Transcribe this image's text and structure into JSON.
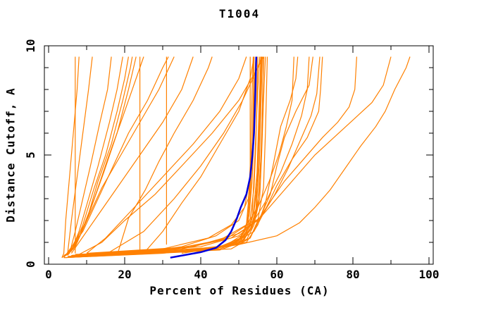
{
  "title": "T1004",
  "axes": {
    "x": {
      "label": "Percent of Residues (CA)",
      "min": 0,
      "max": 100,
      "major_ticks": [
        0,
        20,
        40,
        60,
        80,
        100
      ],
      "major_labels": [
        "0",
        "20",
        "40",
        "60",
        "80",
        "100"
      ],
      "minor_step": 10
    },
    "y": {
      "label": "Distance Cutoff, A",
      "min": 0,
      "max": 10,
      "major_ticks": [
        0,
        5,
        10
      ],
      "major_labels": [
        "0",
        "5",
        "10"
      ],
      "minor_step": 1
    }
  },
  "colors": {
    "model": "#FF8000",
    "highlight": "#0000DD",
    "frame": "#000000",
    "background": "#FFFFFF"
  },
  "chart_data": {
    "type": "line",
    "title": "T1004",
    "xlabel": "Percent of Residues (CA)",
    "ylabel": "Distance Cutoff, A",
    "xlim": [
      0,
      100
    ],
    "ylim": [
      0,
      10
    ],
    "grid": false,
    "legend": "none",
    "x_units": "percent of CA residues",
    "y_units": "angstrom distance cutoff",
    "orange_series": [
      [
        [
          3.5,
          0.3
        ],
        [
          4,
          0.5
        ],
        [
          4.5,
          2
        ],
        [
          5.5,
          4
        ],
        [
          6.5,
          6
        ],
        [
          7.5,
          8
        ],
        [
          8,
          9.5
        ]
      ],
      [
        [
          3.5,
          0.3
        ],
        [
          5,
          0.5
        ],
        [
          6,
          2
        ],
        [
          7.5,
          4
        ],
        [
          9,
          6
        ],
        [
          10.5,
          8
        ],
        [
          11.5,
          9.5
        ]
      ],
      [
        [
          4,
          0.35
        ],
        [
          5.5,
          0.5
        ],
        [
          7,
          1.5
        ],
        [
          9,
          3
        ],
        [
          11,
          4.5
        ],
        [
          13.5,
          6.5
        ],
        [
          15.5,
          8
        ],
        [
          16.5,
          9.5
        ]
      ],
      [
        [
          4,
          0.4
        ],
        [
          6,
          0.6
        ],
        [
          8,
          1.5
        ],
        [
          10.5,
          3
        ],
        [
          13,
          4.5
        ],
        [
          16,
          6.5
        ],
        [
          18,
          8
        ],
        [
          19.5,
          9.5
        ]
      ],
      [
        [
          4.5,
          0.4
        ],
        [
          6.5,
          0.7
        ],
        [
          9,
          1.8
        ],
        [
          12,
          3.5
        ],
        [
          15,
          5
        ],
        [
          18,
          7
        ],
        [
          20,
          8.5
        ],
        [
          21,
          9.5
        ]
      ],
      [
        [
          4,
          0.35
        ],
        [
          7,
          0.8
        ],
        [
          10,
          2
        ],
        [
          13,
          3.8
        ],
        [
          16.5,
          5.5
        ],
        [
          19.5,
          7.5
        ],
        [
          21.5,
          9
        ],
        [
          22,
          9.5
        ]
      ],
      [
        [
          4.5,
          0.4
        ],
        [
          7.5,
          1
        ],
        [
          11,
          2.5
        ],
        [
          14.5,
          4.2
        ],
        [
          18,
          6
        ],
        [
          21,
          8
        ],
        [
          23,
          9.5
        ]
      ],
      [
        [
          5,
          0.4
        ],
        [
          8,
          1.2
        ],
        [
          12,
          3
        ],
        [
          15.5,
          4.8
        ],
        [
          19,
          6.5
        ],
        [
          23,
          8.5
        ],
        [
          25,
          9.5
        ]
      ],
      [
        [
          7,
          0.5
        ],
        [
          7,
          9.5
        ]
      ],
      [
        [
          24,
          0.6
        ],
        [
          24,
          9.5
        ]
      ],
      [
        [
          31,
          0.9
        ],
        [
          31,
          9.5
        ]
      ],
      [
        [
          4,
          0.3
        ],
        [
          9,
          1.5
        ],
        [
          13,
          3
        ],
        [
          17,
          4.5
        ],
        [
          21,
          6
        ],
        [
          26,
          7.5
        ],
        [
          30,
          9
        ],
        [
          31.5,
          9.5
        ]
      ],
      [
        [
          5,
          0.45
        ],
        [
          10,
          2
        ],
        [
          14,
          3.5
        ],
        [
          19,
          5
        ],
        [
          24,
          6.5
        ],
        [
          29,
          8
        ],
        [
          33,
          9.5
        ]
      ],
      [
        [
          6,
          0.5
        ],
        [
          12,
          2
        ],
        [
          18,
          3.5
        ],
        [
          24,
          5
        ],
        [
          30,
          6.5
        ],
        [
          35,
          8
        ],
        [
          38,
          9.5
        ]
      ],
      [
        [
          18,
          0.4
        ],
        [
          21,
          2.1
        ],
        [
          25.4,
          3.4
        ],
        [
          29,
          4.7
        ],
        [
          33,
          6
        ],
        [
          38,
          7.5
        ],
        [
          42,
          9
        ],
        [
          43,
          9.5
        ]
      ],
      [
        [
          10,
          0.5
        ],
        [
          15,
          1.2
        ],
        [
          22,
          2.5
        ],
        [
          30,
          4
        ],
        [
          38,
          5.5
        ],
        [
          45,
          7
        ],
        [
          50,
          8.5
        ],
        [
          52,
          9.5
        ]
      ],
      [
        [
          8,
          0.45
        ],
        [
          14,
          1
        ],
        [
          20,
          2
        ],
        [
          28,
          3.2
        ],
        [
          35,
          4.5
        ],
        [
          43,
          6
        ],
        [
          50,
          7.5
        ],
        [
          55,
          9
        ],
        [
          56,
          9.5
        ]
      ],
      [
        [
          25,
          0.5
        ],
        [
          30,
          1.5
        ],
        [
          35,
          2.8
        ],
        [
          40,
          4
        ],
        [
          45,
          5.5
        ],
        [
          50,
          7
        ],
        [
          53,
          8.5
        ],
        [
          54,
          9.5
        ]
      ],
      [
        [
          15,
          0.45
        ],
        [
          25,
          1.5
        ],
        [
          33,
          3
        ],
        [
          40,
          4.5
        ],
        [
          46,
          6
        ],
        [
          51,
          7.5
        ],
        [
          55,
          9
        ],
        [
          56.5,
          9.5
        ]
      ],
      [
        [
          4,
          0.3
        ],
        [
          30,
          0.5
        ],
        [
          46,
          0.8
        ],
        [
          51,
          1.2
        ],
        [
          52.5,
          2
        ],
        [
          53,
          3
        ],
        [
          53.5,
          5
        ],
        [
          54,
          7
        ],
        [
          54.5,
          9.5
        ]
      ],
      [
        [
          4,
          0.3
        ],
        [
          35,
          0.55
        ],
        [
          48,
          0.9
        ],
        [
          52,
          1.4
        ],
        [
          53.5,
          2.2
        ],
        [
          54,
          4
        ],
        [
          54.5,
          6
        ],
        [
          55,
          8
        ],
        [
          55.5,
          9.5
        ]
      ],
      [
        [
          5,
          0.35
        ],
        [
          40,
          0.6
        ],
        [
          50,
          1
        ],
        [
          53,
          1.6
        ],
        [
          54.5,
          2.5
        ],
        [
          55,
          4.5
        ],
        [
          55.5,
          7
        ],
        [
          56,
          9.5
        ]
      ],
      [
        [
          5,
          0.35
        ],
        [
          45,
          0.65
        ],
        [
          52,
          1.1
        ],
        [
          54,
          1.8
        ],
        [
          55.5,
          3
        ],
        [
          56,
          5
        ],
        [
          56.5,
          7.5
        ],
        [
          57,
          9.5
        ]
      ],
      [
        [
          6,
          0.4
        ],
        [
          48,
          0.7
        ],
        [
          53,
          1.2
        ],
        [
          55,
          2
        ],
        [
          56.5,
          3.5
        ],
        [
          57,
          6
        ],
        [
          57.5,
          9.5
        ]
      ],
      [
        [
          4.5,
          0.3
        ],
        [
          25,
          0.5
        ],
        [
          44,
          0.75
        ],
        [
          50,
          1.1
        ],
        [
          52,
          1.8
        ],
        [
          52.5,
          2.8
        ],
        [
          53,
          4.5
        ],
        [
          53,
          9.5
        ]
      ],
      [
        [
          5,
          0.35
        ],
        [
          33,
          0.55
        ],
        [
          47,
          0.85
        ],
        [
          51.5,
          1.3
        ],
        [
          53,
          2.1
        ],
        [
          54,
          3.5
        ],
        [
          54.5,
          5.5
        ],
        [
          55,
          9.5
        ]
      ],
      [
        [
          6,
          0.4
        ],
        [
          38,
          0.6
        ],
        [
          49,
          0.95
        ],
        [
          52.5,
          1.5
        ],
        [
          54,
          2.4
        ],
        [
          55,
          4
        ],
        [
          55.5,
          6.5
        ],
        [
          56,
          9.5
        ]
      ],
      [
        [
          7,
          0.4
        ],
        [
          42,
          0.65
        ],
        [
          51,
          1.05
        ],
        [
          53.5,
          1.7
        ],
        [
          55,
          2.7
        ],
        [
          55.8,
          4.8
        ],
        [
          56.2,
          7
        ],
        [
          56.5,
          9.5
        ]
      ],
      [
        [
          5.5,
          0.35
        ],
        [
          28,
          0.5
        ],
        [
          45,
          0.8
        ],
        [
          50.5,
          1.2
        ],
        [
          52.2,
          1.9
        ],
        [
          52.8,
          3
        ],
        [
          53.2,
          5
        ],
        [
          53.5,
          8
        ],
        [
          53.8,
          9.5
        ]
      ],
      [
        [
          6,
          0.4
        ],
        [
          36,
          0.6
        ],
        [
          48.5,
          0.9
        ],
        [
          52,
          1.45
        ],
        [
          53.8,
          2.3
        ],
        [
          54.8,
          4.2
        ],
        [
          55.2,
          6.5
        ],
        [
          55.8,
          9.5
        ]
      ],
      [
        [
          7,
          0.45
        ],
        [
          44,
          0.7
        ],
        [
          51.5,
          1.15
        ],
        [
          54,
          1.9
        ],
        [
          55.3,
          3.2
        ],
        [
          56,
          5.5
        ],
        [
          56.3,
          8
        ],
        [
          56.6,
          9.5
        ]
      ],
      [
        [
          5,
          0.35
        ],
        [
          31,
          0.55
        ],
        [
          46.5,
          0.85
        ],
        [
          51,
          1.35
        ],
        [
          52.7,
          2.2
        ],
        [
          53.5,
          3.8
        ],
        [
          54,
          6
        ],
        [
          54.2,
          8.5
        ],
        [
          54.5,
          9.5
        ]
      ],
      [
        [
          6.5,
          0.4
        ],
        [
          41,
          0.65
        ],
        [
          50.5,
          1
        ],
        [
          53.2,
          1.6
        ],
        [
          54.6,
          2.6
        ],
        [
          55.4,
          4.6
        ],
        [
          55.8,
          7.2
        ],
        [
          56.2,
          9.5
        ]
      ],
      [
        [
          20,
          0.45
        ],
        [
          35,
          0.8
        ],
        [
          44,
          1.3
        ],
        [
          50,
          2
        ],
        [
          52.5,
          3
        ],
        [
          53.5,
          4.5
        ],
        [
          54,
          9.5
        ]
      ],
      [
        [
          12,
          0.45
        ],
        [
          30,
          0.7
        ],
        [
          42,
          1.2
        ],
        [
          48,
          1.8
        ],
        [
          51.5,
          2.6
        ],
        [
          53,
          4
        ],
        [
          53.8,
          6
        ],
        [
          54,
          9.5
        ]
      ],
      [
        [
          5,
          0.35
        ],
        [
          40,
          0.6
        ],
        [
          52,
          1
        ],
        [
          55,
          1.8
        ],
        [
          57,
          2.8
        ],
        [
          59,
          4.5
        ],
        [
          61,
          6.3
        ],
        [
          63.5,
          7.5
        ],
        [
          65,
          8.5
        ],
        [
          65.5,
          9.5
        ]
      ],
      [
        [
          6,
          0.4
        ],
        [
          45,
          0.7
        ],
        [
          53,
          1.2
        ],
        [
          56,
          2.3
        ],
        [
          58.3,
          3.2
        ],
        [
          60,
          4.5
        ],
        [
          62,
          5.8
        ],
        [
          65,
          7
        ],
        [
          68.5,
          8.2
        ],
        [
          69.5,
          9.5
        ]
      ],
      [
        [
          7,
          0.4
        ],
        [
          47,
          0.8
        ],
        [
          54,
          1.5
        ],
        [
          57,
          2.5
        ],
        [
          60,
          3.6
        ],
        [
          64,
          4.8
        ],
        [
          68,
          5.8
        ],
        [
          71,
          7
        ],
        [
          71.5,
          8
        ],
        [
          72,
          9.5
        ]
      ],
      [
        [
          8,
          0.45
        ],
        [
          35,
          0.7
        ],
        [
          48,
          1.2
        ],
        [
          55,
          2
        ],
        [
          58,
          2.8
        ],
        [
          62,
          3.8
        ],
        [
          67,
          4.8
        ],
        [
          72,
          5.8
        ],
        [
          76,
          6.5
        ],
        [
          79,
          7.2
        ],
        [
          80.5,
          8
        ],
        [
          81,
          9.5
        ]
      ],
      [
        [
          10,
          0.5
        ],
        [
          38,
          0.8
        ],
        [
          50,
          1.4
        ],
        [
          56,
          2.2
        ],
        [
          60,
          3
        ],
        [
          65,
          4
        ],
        [
          70,
          5
        ],
        [
          75,
          5.8
        ],
        [
          80,
          6.6
        ],
        [
          85,
          7.4
        ],
        [
          88,
          8.2
        ],
        [
          90,
          9.5
        ]
      ],
      [
        [
          35,
          0.5
        ],
        [
          50,
          0.9
        ],
        [
          60,
          1.3
        ],
        [
          66,
          1.9
        ],
        [
          70,
          2.6
        ],
        [
          74,
          3.4
        ],
        [
          78,
          4.4
        ],
        [
          82,
          5.4
        ],
        [
          86,
          6.3
        ],
        [
          88.5,
          7
        ],
        [
          91,
          8
        ],
        [
          94,
          9
        ],
        [
          95,
          9.5
        ]
      ],
      [
        [
          9,
          0.45
        ],
        [
          33,
          0.7
        ],
        [
          45,
          1.1
        ],
        [
          52,
          1.8
        ],
        [
          55,
          2.6
        ],
        [
          58,
          3.8
        ],
        [
          60.5,
          5
        ],
        [
          62.5,
          6.3
        ],
        [
          64,
          7.5
        ],
        [
          64.5,
          9.5
        ]
      ],
      [
        [
          11,
          0.5
        ],
        [
          36,
          0.75
        ],
        [
          47,
          1.2
        ],
        [
          54,
          2
        ],
        [
          57.5,
          3
        ],
        [
          61,
          4.2
        ],
        [
          64,
          5.5
        ],
        [
          66.5,
          6.8
        ],
        [
          68,
          8
        ],
        [
          68.5,
          9.5
        ]
      ],
      [
        [
          13,
          0.5
        ],
        [
          40,
          0.8
        ],
        [
          50,
          1.3
        ],
        [
          56,
          2.2
        ],
        [
          59.5,
          3.2
        ],
        [
          63,
          4.4
        ],
        [
          66,
          5.6
        ],
        [
          69,
          6.8
        ],
        [
          70.5,
          7.8
        ],
        [
          71.3,
          9.5
        ]
      ]
    ],
    "blue_series": [
      [
        32,
        0.3
      ],
      [
        40,
        0.55
      ],
      [
        44,
        0.75
      ],
      [
        46.5,
        1.1
      ],
      [
        48,
        1.5
      ],
      [
        49.5,
        2.1
      ],
      [
        50.5,
        2.6
      ],
      [
        52,
        3.2
      ],
      [
        53,
        4
      ],
      [
        53.6,
        5
      ],
      [
        54,
        6
      ],
      [
        54.3,
        7.5
      ],
      [
        54.6,
        9.5
      ]
    ]
  }
}
